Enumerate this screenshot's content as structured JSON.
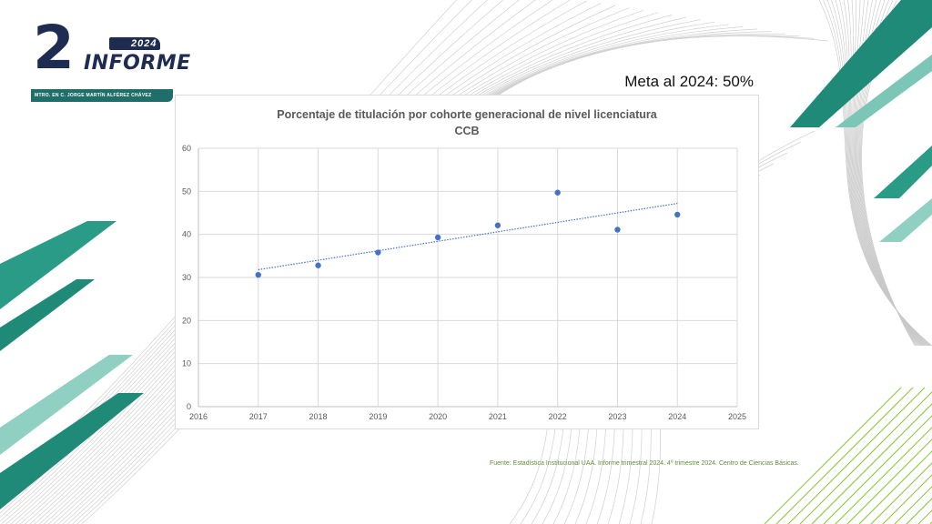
{
  "logo": {
    "number": "2",
    "year": "2024",
    "word": "INFORME",
    "band_text": "MTRO. EN C. JORGE MARTÍN ALFÉREZ CHÁVEZ"
  },
  "meta_label": "Meta al 2024: 50%",
  "source_note": "Fuente: Estadística Institucional UAA. Informe trimestral 2024. 4º trimestre 2024. Centro de Ciencias Básicas.",
  "colors": {
    "accent_teal": "#1f8a78",
    "navy": "#1f2c52",
    "marker": "#4472c4",
    "source_green": "#5f8d3a"
  },
  "chart_data": {
    "type": "scatter",
    "title_line1": "Porcentaje de titulación por cohorte generacional de nivel licenciatura",
    "title_line2": "CCB",
    "xlim": [
      2016,
      2025
    ],
    "ylim": [
      0,
      60
    ],
    "x_ticks": [
      "2016",
      "2017",
      "2018",
      "2019",
      "2020",
      "2021",
      "2022",
      "2023",
      "2024",
      "2025"
    ],
    "y_ticks": [
      "0",
      "10",
      "20",
      "30",
      "40",
      "50",
      "60"
    ],
    "x": [
      2017,
      2018,
      2019,
      2020,
      2021,
      2022,
      2023,
      2024
    ],
    "y": [
      30.6,
      32.8,
      35.8,
      39.3,
      42.1,
      49.7,
      41.1,
      44.6
    ],
    "trendline": {
      "type": "linear",
      "x": [
        2017,
        2024
      ],
      "y": [
        31.8,
        47.2
      ]
    },
    "grid": true,
    "legend": "none"
  }
}
